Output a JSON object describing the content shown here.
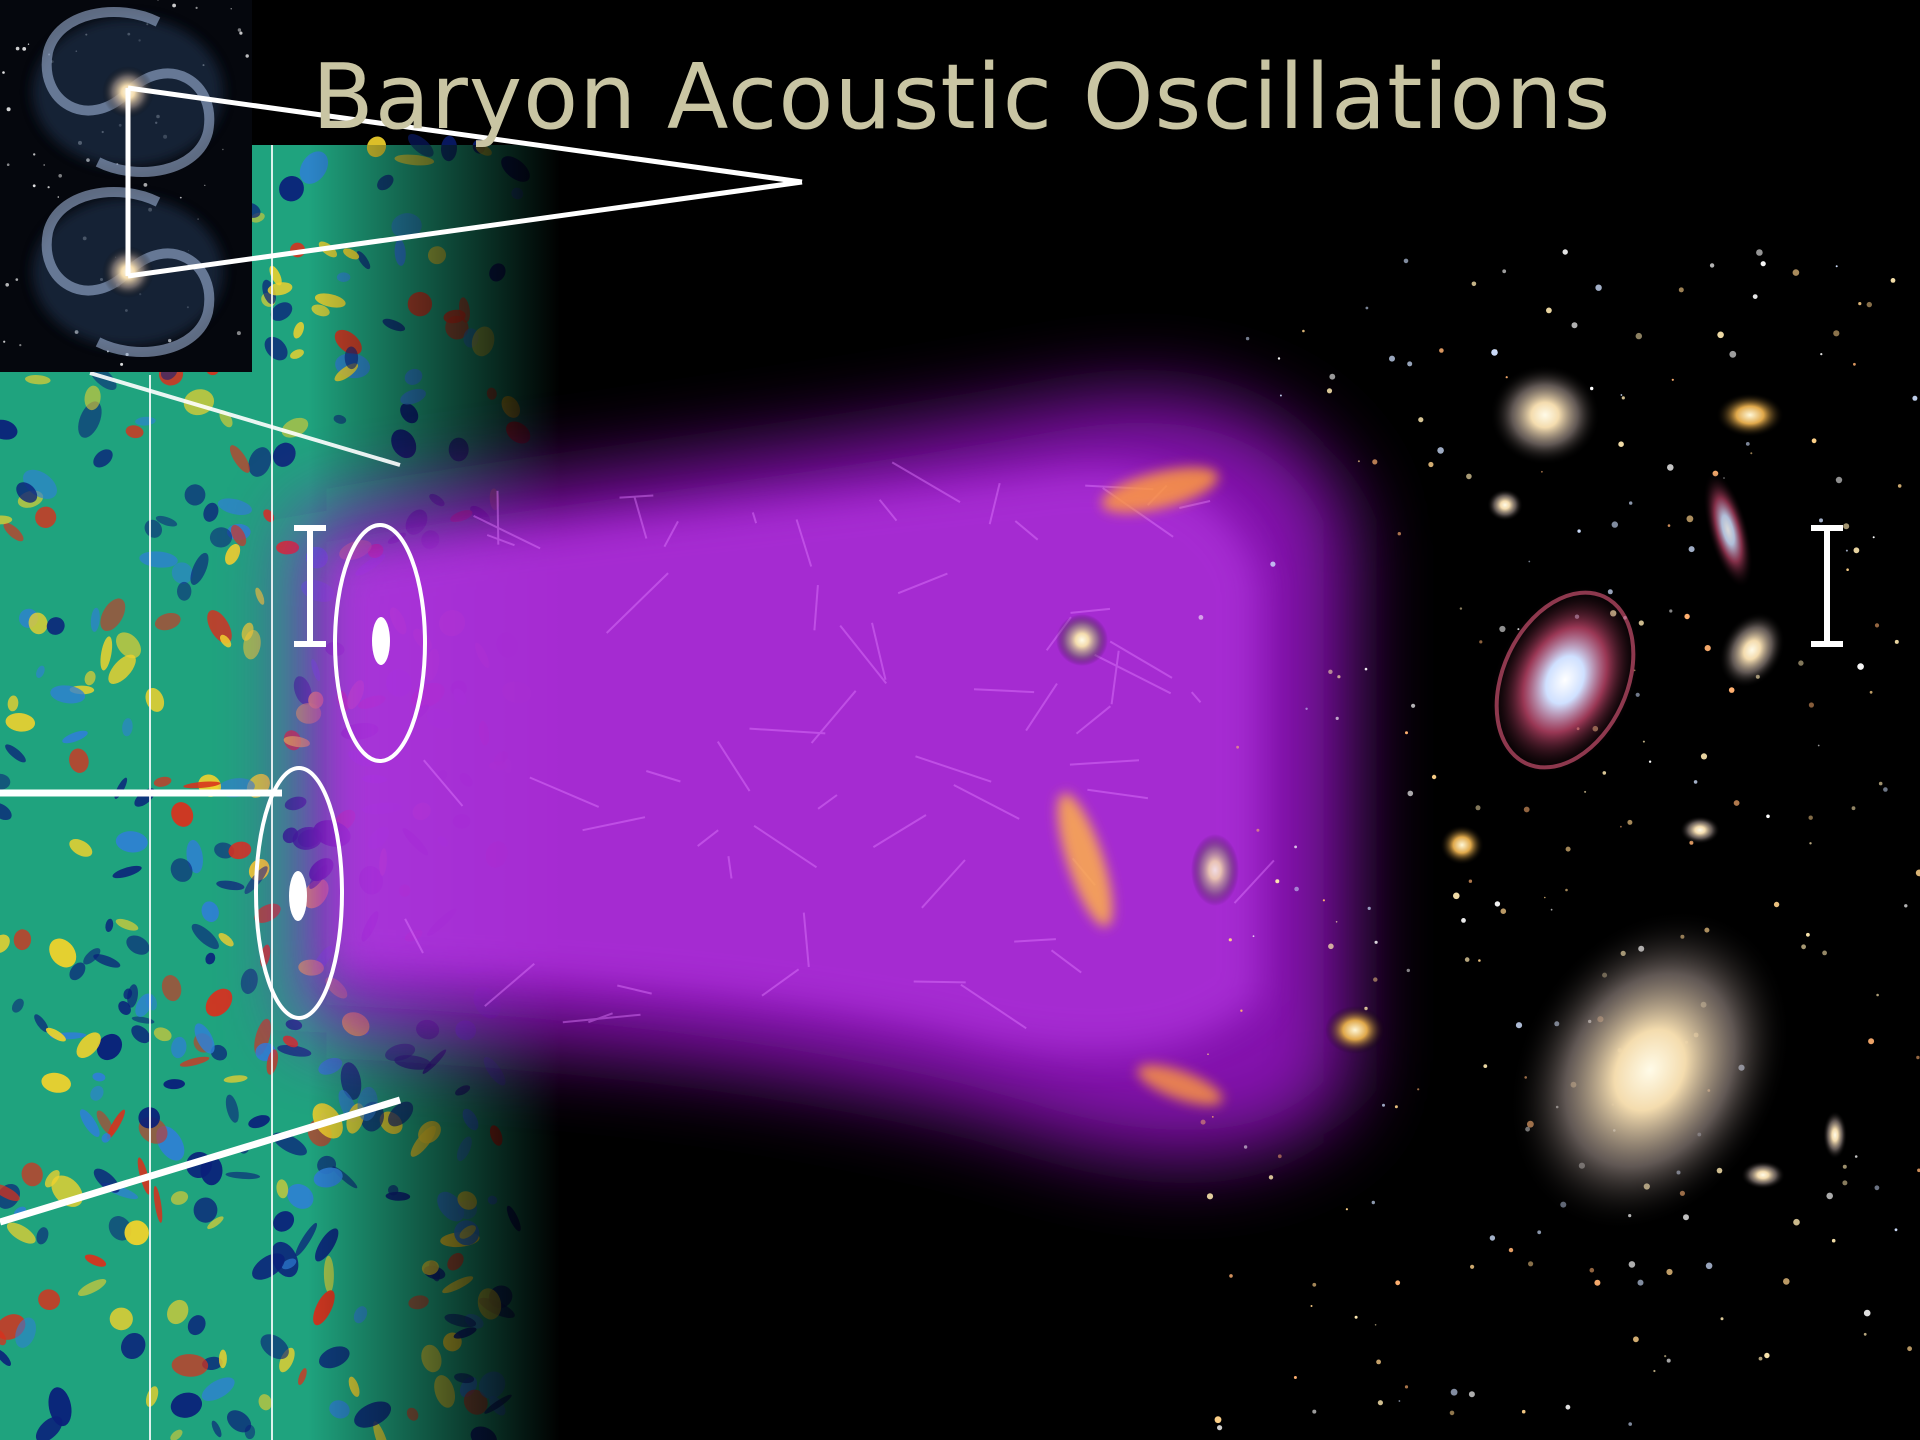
{
  "slide": {
    "title": "Baryon Acoustic Oscillations"
  },
  "colors": {
    "title": "#c9c5a3",
    "background": "#000000",
    "annotation": "#ffffff",
    "purple_glow": "#b31ee6",
    "cmb_base": "#1fa37e",
    "cmb_cold": "#0a1f7a",
    "cmb_warm": "#f1d22c",
    "cmb_hot": "#d9301c"
  },
  "icons": [
    "scale-bar-icon",
    "bao-circle-icon",
    "zoom-callout-icon"
  ]
}
